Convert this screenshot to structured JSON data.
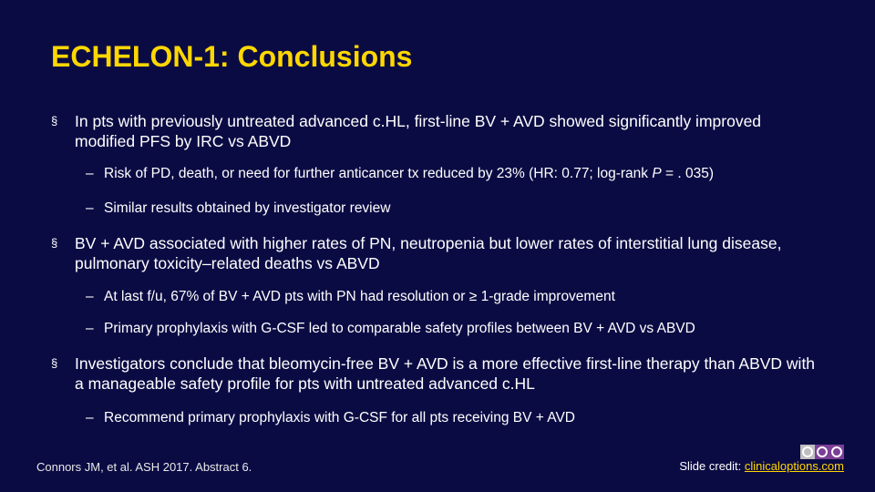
{
  "slide": {
    "title": "ECHELON-1: Conclusions",
    "bullet_marker": "§",
    "sub_marker": "–",
    "bullets": [
      {
        "text": "In pts with previously untreated advanced c.HL, first-line BV + AVD showed significantly improved modified PFS by IRC vs ABVD",
        "subs": [
          {
            "pre": "Risk of PD, death, or need for further anticancer tx reduced by 23% (HR: 0.77; log-rank ",
            "ital": "P",
            "post": " = . 035)"
          },
          {
            "pre": "Similar results obtained by investigator review"
          }
        ]
      },
      {
        "text": "BV + AVD associated with higher rates of PN, neutropenia but lower rates of interstitial lung disease, pulmonary toxicity–related deaths vs ABVD",
        "subs": [
          {
            "pre": "At last f/u, 67% of BV + AVD pts with PN had resolution or ≥ 1-grade improvement"
          },
          {
            "pre": "Primary prophylaxis with G-CSF led to comparable safety profiles between BV + AVD vs ABVD"
          }
        ]
      },
      {
        "text": "Investigators conclude that bleomycin-free BV + AVD is a more effective first-line therapy than ABVD with a manageable safety profile for pts with untreated advanced c.HL",
        "subs": [
          {
            "pre": "Recommend primary prophylaxis with G-CSF for all pts receiving BV + AVD"
          }
        ]
      }
    ]
  },
  "footer": {
    "citation": "Connors JM, et al. ASH 2017. Abstract 6.",
    "credit_label": "Slide credit: ",
    "credit_link": "clinicaloptions.com"
  },
  "colors": {
    "background": "#0b0b44",
    "title": "#ffd700",
    "text": "#ffffff",
    "logo_purple": "#7b3f98",
    "logo_gray": "#bfbfbf"
  },
  "icons": {
    "logo": "cco-logo"
  }
}
